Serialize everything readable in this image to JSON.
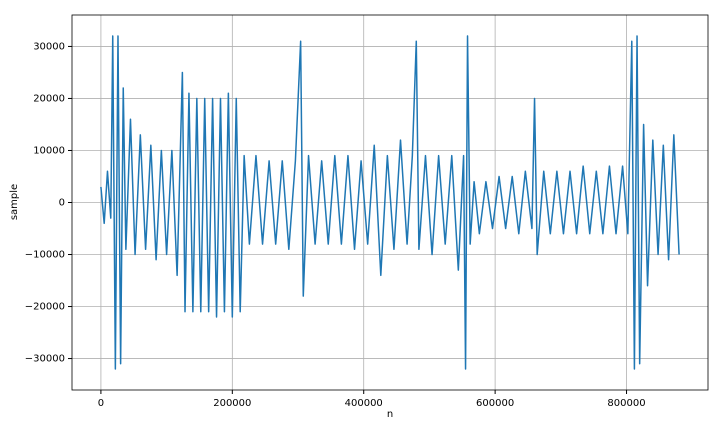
{
  "chart_data": {
    "type": "line",
    "xlabel": "n",
    "ylabel": "sample",
    "x": [
      0,
      5000,
      10000,
      15000,
      18000,
      22000,
      26000,
      30000,
      34000,
      38000,
      45000,
      52000,
      60000,
      68000,
      76000,
      84000,
      92000,
      100000,
      108000,
      116000,
      124000,
      128000,
      134000,
      140000,
      146000,
      152000,
      158000,
      164000,
      170000,
      176000,
      182000,
      188000,
      194000,
      200000,
      206000,
      212000,
      218000,
      226000,
      236000,
      246000,
      256000,
      266000,
      276000,
      286000,
      296000,
      304000,
      308000,
      316000,
      326000,
      336000,
      346000,
      356000,
      366000,
      376000,
      386000,
      396000,
      406000,
      416000,
      426000,
      436000,
      446000,
      456000,
      466000,
      474000,
      480000,
      484000,
      494000,
      504000,
      514000,
      524000,
      534000,
      544000,
      552000,
      555000,
      558000,
      562000,
      568000,
      576000,
      586000,
      596000,
      606000,
      616000,
      626000,
      636000,
      646000,
      656000,
      660000,
      664000,
      674000,
      684000,
      694000,
      704000,
      714000,
      724000,
      734000,
      744000,
      754000,
      764000,
      774000,
      784000,
      794000,
      802000,
      808000,
      812000,
      816000,
      820000,
      826000,
      832000,
      840000,
      848000,
      856000,
      864000,
      872000,
      880000
    ],
    "series": [
      {
        "color": "#1f77b4",
        "values": [
          3000,
          -4000,
          6000,
          -3000,
          32000,
          -32000,
          32000,
          -31000,
          22000,
          -9000,
          16000,
          -10000,
          13000,
          -9000,
          11000,
          -11000,
          10000,
          -10000,
          10000,
          -14000,
          25000,
          -21000,
          21000,
          -21000,
          20000,
          -21000,
          20000,
          -21000,
          20000,
          -22000,
          20000,
          -21000,
          21000,
          -22000,
          20000,
          -21000,
          9000,
          -8000,
          9000,
          -8000,
          8000,
          -8000,
          8000,
          -9000,
          8000,
          31000,
          -18000,
          9000,
          -8000,
          8000,
          -8000,
          9000,
          -8000,
          9000,
          -9000,
          8000,
          -8000,
          11000,
          -14000,
          9000,
          -9000,
          12000,
          -8000,
          9000,
          31000,
          -9000,
          9000,
          -10000,
          9000,
          -8000,
          9000,
          -13000,
          9000,
          -32000,
          32000,
          -8000,
          4000,
          -6000,
          4000,
          -5000,
          5000,
          -5000,
          5000,
          -6000,
          6000,
          -5000,
          20000,
          -10000,
          6000,
          -6000,
          6000,
          -6000,
          6000,
          -6000,
          7000,
          -6000,
          6000,
          -6000,
          7000,
          -6000,
          7000,
          -6000,
          31000,
          -32000,
          32000,
          -31000,
          15000,
          -16000,
          12000,
          -10000,
          11000,
          -11000,
          13000,
          -10000
        ]
      }
    ],
    "xlim": [
      -44000,
      924000
    ],
    "ylim": [
      -36045,
      36044
    ],
    "xticks": [
      0,
      200000,
      400000,
      600000,
      800000
    ],
    "yticks": [
      {
        "value": -30000,
        "label": "−30000"
      },
      {
        "value": -20000,
        "label": "−20000"
      },
      {
        "value": -10000,
        "label": "−10000"
      },
      0,
      10000,
      20000,
      30000
    ],
    "grid": true
  }
}
